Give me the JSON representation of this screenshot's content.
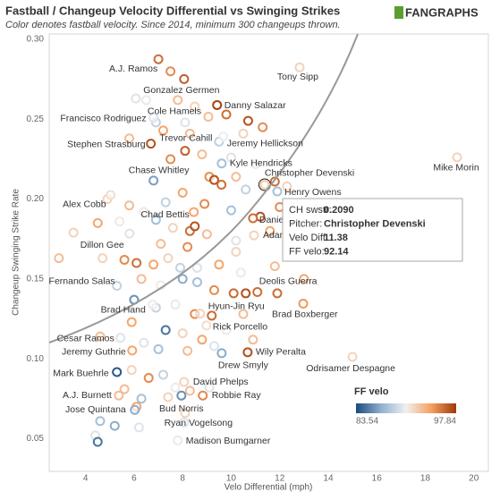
{
  "chart_data": {
    "type": "scatter",
    "title": "Fastball / Changeup Velocity Differential vs Swinging Strikes",
    "subtitle": "Color denotes fastball velocity. Since 2014, minimum 300 changeups thrown.",
    "logo": "FANGRAPHS",
    "x_label": "Velo Differential (mph)",
    "y_label": "Changeup Swinging Strike Rate",
    "xlim": [
      2.5,
      20.6
    ],
    "ylim": [
      0.0295,
      0.3034
    ],
    "xticks": [
      4,
      6,
      8,
      10,
      12,
      14,
      16,
      18,
      20
    ],
    "yticks": [
      {
        "value": 0.3,
        "label": "0.30"
      },
      0.25,
      {
        "value": 0.2,
        "label": "0.20"
      },
      0.15,
      {
        "value": 0.1,
        "label": "0.10"
      },
      0.05
    ],
    "grid": false,
    "legend_title": "FF velo",
    "color_domain": [
      83.54,
      97.84
    ],
    "color_scale": [
      "#1b4a80",
      "#8fb0cf",
      "#f0f0f0",
      "#f5a061",
      "#a0390b"
    ],
    "labeled": [
      {
        "name": "A.J. Ramos",
        "x": 7.0,
        "y": 0.2876,
        "velo": 96
      },
      {
        "name": "Gonzalez Germen",
        "x": 8.06,
        "y": 0.2752,
        "velo": 96.5
      },
      {
        "name": "Danny Salazar",
        "x": 9.42,
        "y": 0.2589,
        "velo": 97.5
      },
      {
        "name": "Cole Hamels",
        "x": 9.06,
        "y": 0.2516,
        "velo": 93
      },
      {
        "name": "Francisco Rodriguez",
        "x": 6.8,
        "y": 0.251,
        "velo": 90
      },
      {
        "name": "Trevor Cahill",
        "x": 8.1,
        "y": 0.2302,
        "velo": 96.5
      },
      {
        "name": "Jeremy Hellickson",
        "x": 9.68,
        "y": 0.2392,
        "velo": 90.5
      },
      {
        "name": "Stephen Strasburg",
        "x": 6.69,
        "y": 0.2347,
        "velo": 97
      },
      {
        "name": "Kyle Hendricks",
        "x": 9.61,
        "y": 0.2223,
        "velo": 88
      },
      {
        "name": "Christopher Devenski",
        "x": 11.38,
        "y": 0.209,
        "velo": 92.14
      },
      {
        "name": "Chase Whitley",
        "x": 6.8,
        "y": 0.2116,
        "velo": 86.5
      },
      {
        "name": "Henry Owens",
        "x": 11.9,
        "y": 0.2048,
        "velo": 88
      },
      {
        "name": "Mike Morin",
        "x": 19.31,
        "y": 0.2262,
        "velo": 92
      },
      {
        "name": "Tony Sipp",
        "x": 12.82,
        "y": 0.2825,
        "velo": 92
      },
      {
        "name": "Alex Cobb",
        "x": 5.03,
        "y": 0.2026,
        "velo": 91.5
      },
      {
        "name": "Chad Bettis",
        "x": 8.46,
        "y": 0.1919,
        "velo": 94
      },
      {
        "name": "Dillon Gee",
        "x": 5.81,
        "y": 0.1784,
        "velo": 90
      },
      {
        "name": "Danie",
        "x": 10.9,
        "y": 0.188,
        "velo": 96
      },
      {
        "name": "Adam",
        "x": 10.94,
        "y": 0.1773,
        "velo": 92
      },
      {
        "name": "Fernando Salas",
        "x": 5.29,
        "y": 0.1457,
        "velo": 89
      },
      {
        "name": "Deolis Guerra",
        "x": 11.08,
        "y": 0.1418,
        "velo": 96
      },
      {
        "name": "Hyun-Jin Ryu",
        "x": 8.72,
        "y": 0.1283,
        "velo": 92
      },
      {
        "name": "Brad Hand",
        "x": 6.77,
        "y": 0.1339,
        "velo": 91
      },
      {
        "name": "Brad Boxberger",
        "x": 12.97,
        "y": 0.1345,
        "velo": 94.5
      },
      {
        "name": "Rick Porcello",
        "x": 8.98,
        "y": 0.1209,
        "velo": 91.5
      },
      {
        "name": "Cesar Ramos",
        "x": 5.44,
        "y": 0.1131,
        "velo": 90
      },
      {
        "name": "Jeremy Guthrie",
        "x": 5.92,
        "y": 0.1052,
        "velo": 94
      },
      {
        "name": "Wily Peralta",
        "x": 10.68,
        "y": 0.1041,
        "velo": 97
      },
      {
        "name": "Drew Smyly",
        "x": 9.61,
        "y": 0.1035,
        "velo": 87
      },
      {
        "name": "Odrisamer Despagne",
        "x": 15.0,
        "y": 0.1012,
        "velo": 92
      },
      {
        "name": "Mark Buehrle",
        "x": 5.29,
        "y": 0.0917,
        "velo": 84
      },
      {
        "name": "David Phelps",
        "x": 8.06,
        "y": 0.0855,
        "velo": 92
      },
      {
        "name": "A.J. Burnett",
        "x": 5.37,
        "y": 0.077,
        "velo": 93
      },
      {
        "name": "Robbie Ray",
        "x": 8.83,
        "y": 0.077,
        "velo": 95
      },
      {
        "name": "Bud Norris",
        "x": 7.95,
        "y": 0.077,
        "velo": 86
      },
      {
        "name": "Jose Quintana",
        "x": 6.03,
        "y": 0.068,
        "velo": 87
      },
      {
        "name": "Ryan Vogelsong",
        "x": 8.06,
        "y": 0.0601,
        "velo": 90
      },
      {
        "name": "Madison Bumgarner",
        "x": 7.8,
        "y": 0.0489,
        "velo": 91
      }
    ],
    "others": [
      {
        "x": 6.07,
        "y": 0.263,
        "velo": 90
      },
      {
        "x": 6.5,
        "y": 0.262,
        "velo": 91
      },
      {
        "x": 7.8,
        "y": 0.262,
        "velo": 93
      },
      {
        "x": 8.5,
        "y": 0.258,
        "velo": 92
      },
      {
        "x": 9.8,
        "y": 0.253,
        "velo": 96
      },
      {
        "x": 10.7,
        "y": 0.249,
        "velo": 97
      },
      {
        "x": 11.3,
        "y": 0.245,
        "velo": 95
      },
      {
        "x": 8.1,
        "y": 0.248,
        "velo": 90
      },
      {
        "x": 6.9,
        "y": 0.248,
        "velo": 89
      },
      {
        "x": 7.2,
        "y": 0.243,
        "velo": 94
      },
      {
        "x": 8.3,
        "y": 0.241,
        "velo": 93
      },
      {
        "x": 9.5,
        "y": 0.236,
        "velo": 89
      },
      {
        "x": 10.5,
        "y": 0.241,
        "velo": 92
      },
      {
        "x": 5.8,
        "y": 0.238,
        "velo": 93
      },
      {
        "x": 7.5,
        "y": 0.225,
        "velo": 95
      },
      {
        "x": 8.8,
        "y": 0.228,
        "velo": 93
      },
      {
        "x": 10.0,
        "y": 0.226,
        "velo": 90
      },
      {
        "x": 11.0,
        "y": 0.222,
        "velo": 91
      },
      {
        "x": 9.1,
        "y": 0.214,
        "velo": 95
      },
      {
        "x": 9.3,
        "y": 0.212,
        "velo": 97
      },
      {
        "x": 9.6,
        "y": 0.209,
        "velo": 96
      },
      {
        "x": 10.2,
        "y": 0.214,
        "velo": 93
      },
      {
        "x": 10.6,
        "y": 0.206,
        "velo": 89
      },
      {
        "x": 11.8,
        "y": 0.211,
        "velo": 96
      },
      {
        "x": 12.3,
        "y": 0.208,
        "velo": 92
      },
      {
        "x": 4.9,
        "y": 0.2,
        "velo": 92
      },
      {
        "x": 5.8,
        "y": 0.196,
        "velo": 93
      },
      {
        "x": 6.4,
        "y": 0.192,
        "velo": 91
      },
      {
        "x": 7.3,
        "y": 0.198,
        "velo": 89
      },
      {
        "x": 8.0,
        "y": 0.204,
        "velo": 94
      },
      {
        "x": 8.9,
        "y": 0.197,
        "velo": 95
      },
      {
        "x": 10.0,
        "y": 0.193,
        "velo": 88
      },
      {
        "x": 11.2,
        "y": 0.189,
        "velo": 97
      },
      {
        "x": 12.0,
        "y": 0.195,
        "velo": 95
      },
      {
        "x": 3.5,
        "y": 0.179,
        "velo": 92
      },
      {
        "x": 4.5,
        "y": 0.185,
        "velo": 94
      },
      {
        "x": 5.4,
        "y": 0.186,
        "velo": 91
      },
      {
        "x": 6.9,
        "y": 0.187,
        "velo": 88
      },
      {
        "x": 7.6,
        "y": 0.182,
        "velo": 92
      },
      {
        "x": 8.3,
        "y": 0.18,
        "velo": 96
      },
      {
        "x": 8.5,
        "y": 0.183,
        "velo": 97
      },
      {
        "x": 9.0,
        "y": 0.178,
        "velo": 93
      },
      {
        "x": 10.2,
        "y": 0.174,
        "velo": 90
      },
      {
        "x": 11.6,
        "y": 0.18,
        "velo": 94
      },
      {
        "x": 12.4,
        "y": 0.171,
        "velo": 95
      },
      {
        "x": 2.9,
        "y": 0.163,
        "velo": 93
      },
      {
        "x": 4.7,
        "y": 0.163,
        "velo": 92
      },
      {
        "x": 5.6,
        "y": 0.162,
        "velo": 95
      },
      {
        "x": 6.1,
        "y": 0.16,
        "velo": 96
      },
      {
        "x": 6.8,
        "y": 0.159,
        "velo": 94
      },
      {
        "x": 7.4,
        "y": 0.163,
        "velo": 92
      },
      {
        "x": 7.9,
        "y": 0.157,
        "velo": 89
      },
      {
        "x": 8.6,
        "y": 0.157,
        "velo": 90
      },
      {
        "x": 9.5,
        "y": 0.159,
        "velo": 94
      },
      {
        "x": 10.4,
        "y": 0.154,
        "velo": 91
      },
      {
        "x": 11.8,
        "y": 0.158,
        "velo": 93
      },
      {
        "x": 6.3,
        "y": 0.15,
        "velo": 93
      },
      {
        "x": 7.1,
        "y": 0.146,
        "velo": 91
      },
      {
        "x": 8.0,
        "y": 0.15,
        "velo": 87
      },
      {
        "x": 8.6,
        "y": 0.148,
        "velo": 88
      },
      {
        "x": 9.3,
        "y": 0.143,
        "velo": 95
      },
      {
        "x": 10.1,
        "y": 0.141,
        "velo": 96
      },
      {
        "x": 10.6,
        "y": 0.141,
        "velo": 97
      },
      {
        "x": 11.9,
        "y": 0.141,
        "velo": 96
      },
      {
        "x": 13.0,
        "y": 0.15,
        "velo": 94
      },
      {
        "x": 6.0,
        "y": 0.137,
        "velo": 86
      },
      {
        "x": 6.9,
        "y": 0.132,
        "velo": 89
      },
      {
        "x": 7.7,
        "y": 0.134,
        "velo": 91
      },
      {
        "x": 8.5,
        "y": 0.128,
        "velo": 95
      },
      {
        "x": 9.2,
        "y": 0.127,
        "velo": 96
      },
      {
        "x": 10.5,
        "y": 0.128,
        "velo": 93
      },
      {
        "x": 5.9,
        "y": 0.123,
        "velo": 94
      },
      {
        "x": 7.3,
        "y": 0.118,
        "velo": 85
      },
      {
        "x": 8.0,
        "y": 0.116,
        "velo": 92
      },
      {
        "x": 8.8,
        "y": 0.112,
        "velo": 94
      },
      {
        "x": 9.8,
        "y": 0.118,
        "velo": 91
      },
      {
        "x": 4.6,
        "y": 0.114,
        "velo": 93
      },
      {
        "x": 6.4,
        "y": 0.11,
        "velo": 90
      },
      {
        "x": 7.0,
        "y": 0.106,
        "velo": 88
      },
      {
        "x": 8.2,
        "y": 0.105,
        "velo": 93
      },
      {
        "x": 9.3,
        "y": 0.108,
        "velo": 90
      },
      {
        "x": 10.9,
        "y": 0.112,
        "velo": 93
      },
      {
        "x": 5.9,
        "y": 0.093,
        "velo": 92
      },
      {
        "x": 6.6,
        "y": 0.088,
        "velo": 95
      },
      {
        "x": 7.2,
        "y": 0.09,
        "velo": 89
      },
      {
        "x": 7.7,
        "y": 0.082,
        "velo": 91
      },
      {
        "x": 8.3,
        "y": 0.08,
        "velo": 93
      },
      {
        "x": 9.1,
        "y": 0.082,
        "velo": 90
      },
      {
        "x": 5.6,
        "y": 0.081,
        "velo": 93
      },
      {
        "x": 6.3,
        "y": 0.075,
        "velo": 88
      },
      {
        "x": 7.4,
        "y": 0.076,
        "velo": 92
      },
      {
        "x": 6.1,
        "y": 0.07,
        "velo": 94
      },
      {
        "x": 8.1,
        "y": 0.066,
        "velo": 92
      },
      {
        "x": 4.6,
        "y": 0.061,
        "velo": 88
      },
      {
        "x": 5.2,
        "y": 0.058,
        "velo": 87
      },
      {
        "x": 4.4,
        "y": 0.052,
        "velo": 90
      },
      {
        "x": 4.5,
        "y": 0.048,
        "velo": 85
      },
      {
        "x": 6.2,
        "y": 0.057,
        "velo": 90
      },
      {
        "x": 10.2,
        "y": 0.167,
        "velo": 92
      },
      {
        "x": 8.2,
        "y": 0.17,
        "velo": 95
      },
      {
        "x": 7.1,
        "y": 0.172,
        "velo": 93
      },
      {
        "x": 7.5,
        "y": 0.28,
        "velo": 95
      }
    ],
    "tooltip": {
      "rows": [
        [
          "CH swstr:",
          "0.2090"
        ],
        [
          "Pitcher:",
          "Christopher Devenski"
        ],
        [
          "Velo Diff:",
          "11.38"
        ],
        [
          "FF velo:",
          "92.14"
        ]
      ]
    }
  }
}
